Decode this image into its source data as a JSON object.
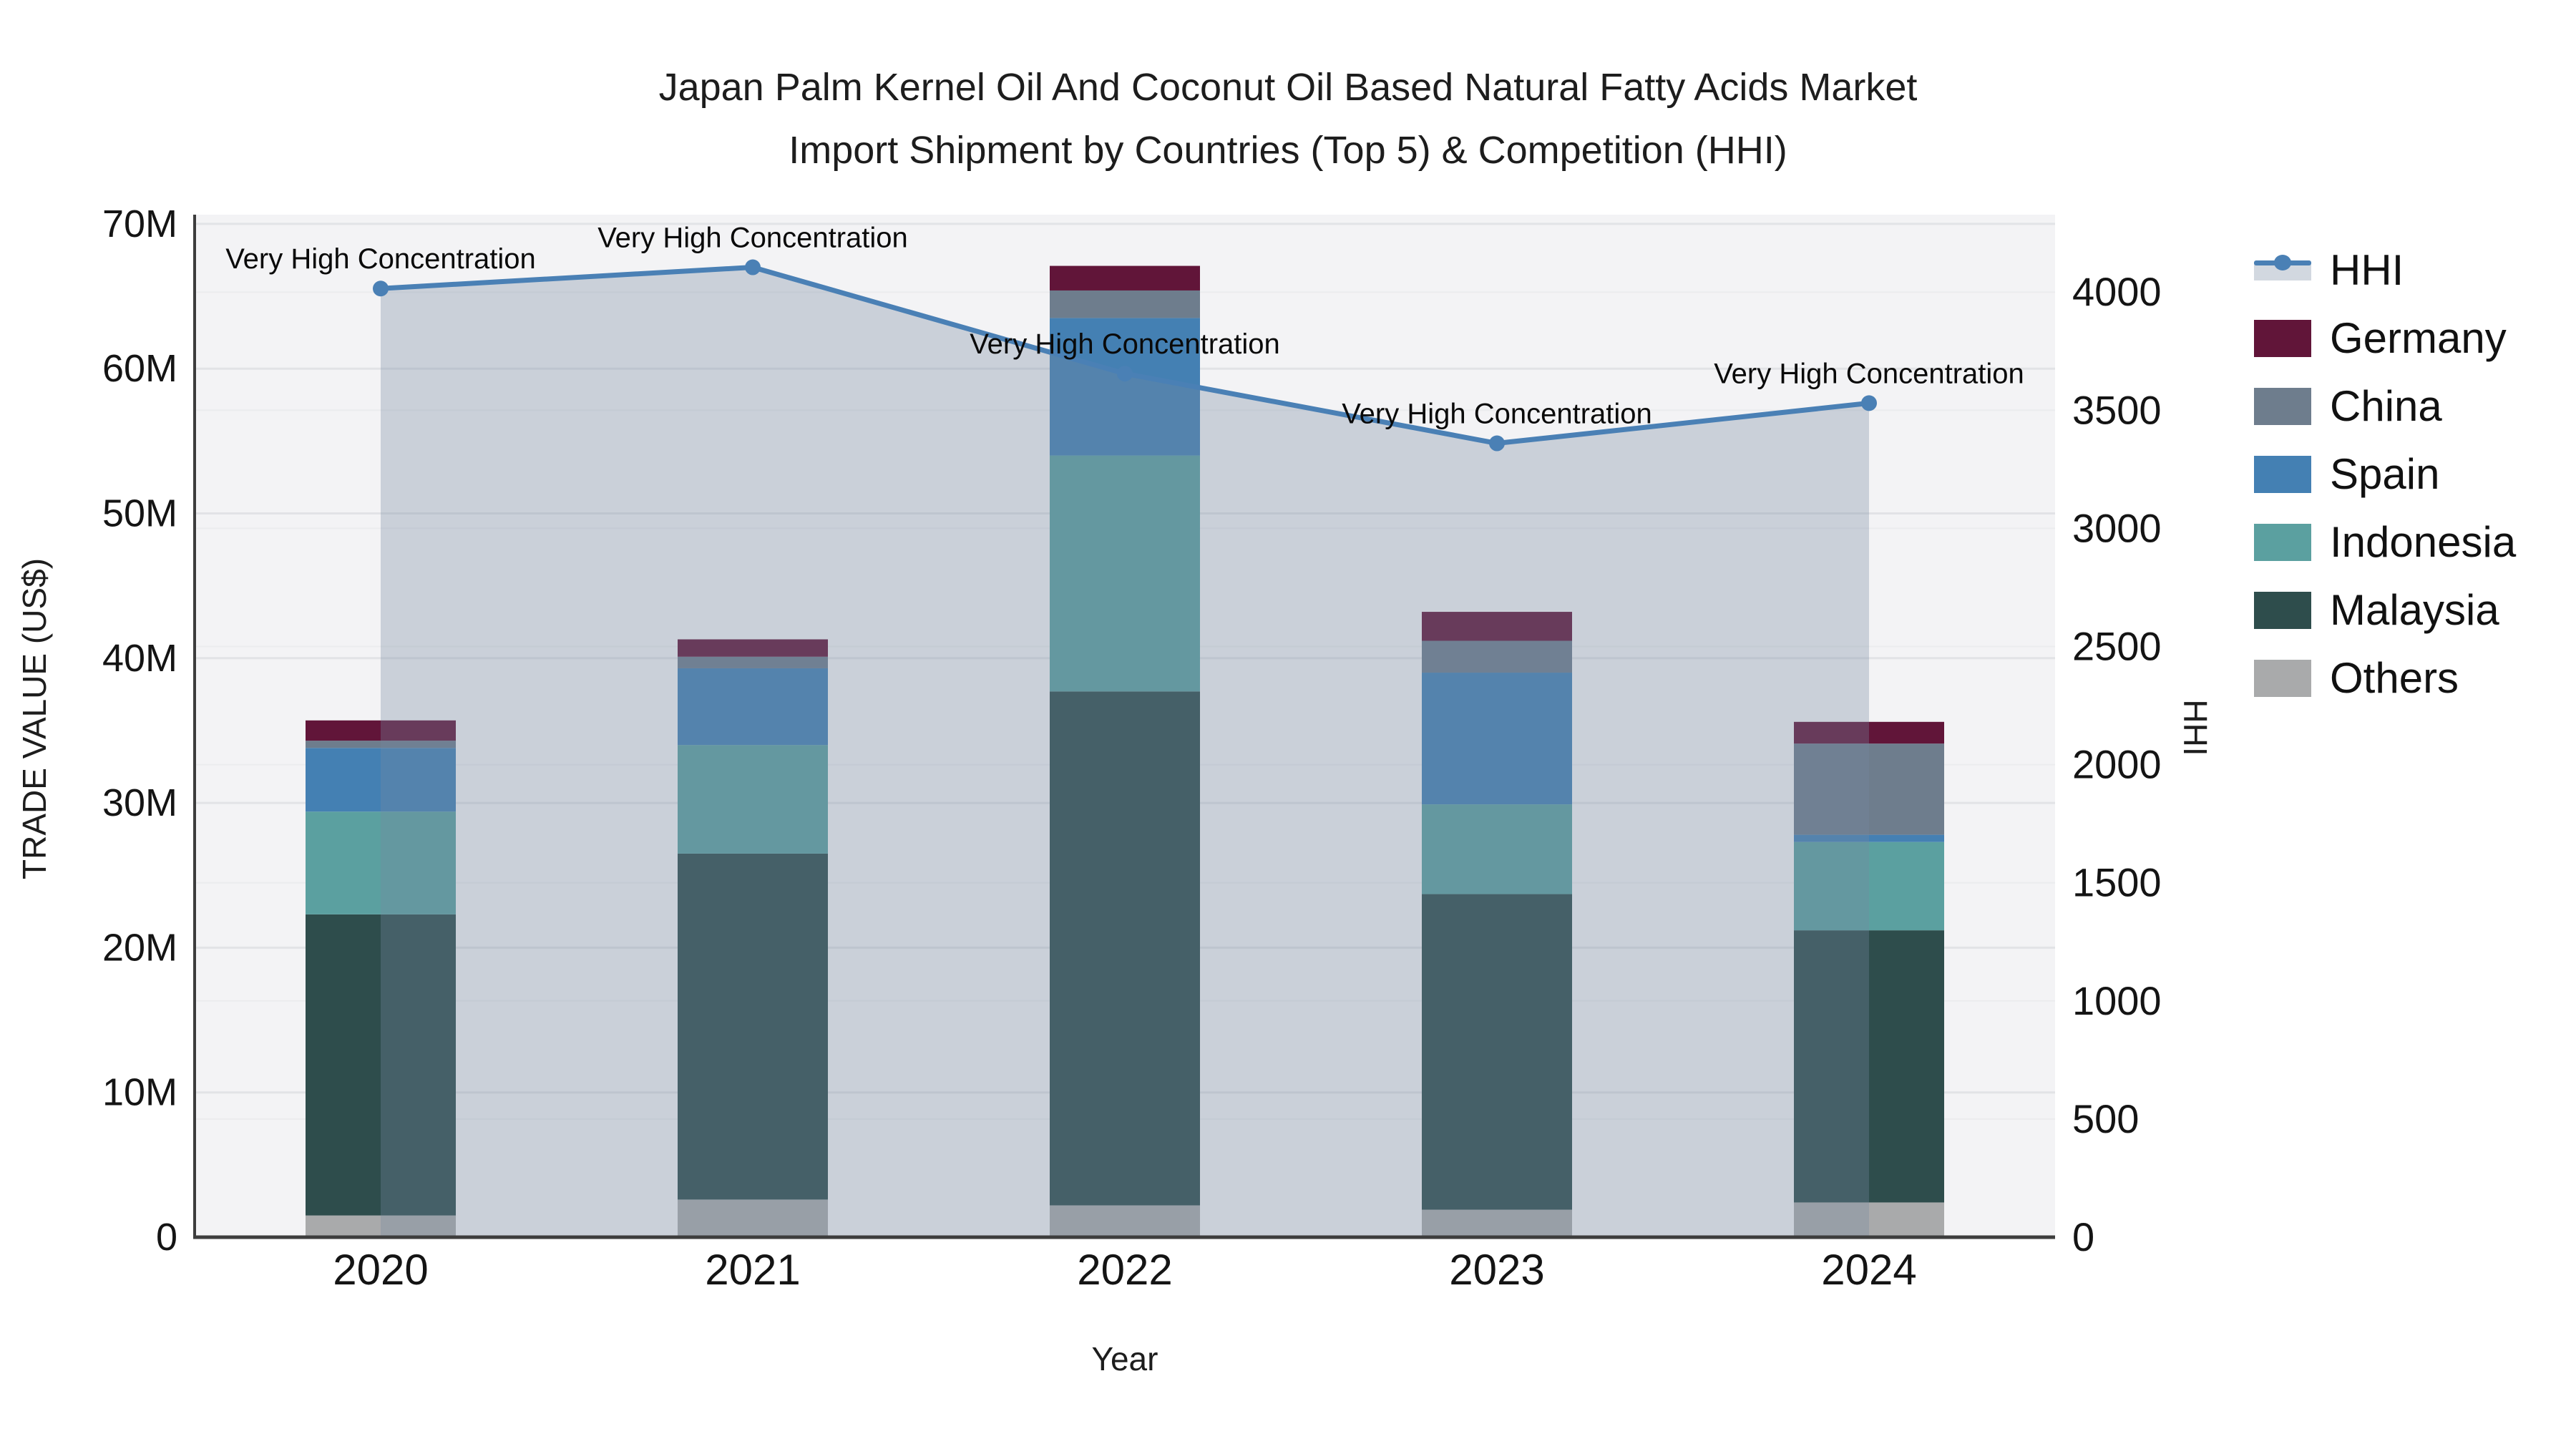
{
  "title": {
    "line1": "Japan Palm Kernel Oil And Coconut Oil Based Natural Fatty Acids Market",
    "line2": "Import Shipment by Countries (Top 5) & Competition (HHI)"
  },
  "axes": {
    "y_left_title": "TRADE VALUE (US$)",
    "y_right_title": "HHI",
    "x_title": "Year"
  },
  "legend": {
    "items": [
      {
        "label": "HHI",
        "type": "line",
        "color": "#4a80b5"
      },
      {
        "label": "Germany",
        "type": "swatch",
        "color": "#611539"
      },
      {
        "label": "China",
        "type": "swatch",
        "color": "#6e7d8d"
      },
      {
        "label": "Spain",
        "type": "swatch",
        "color": "#4480b3"
      },
      {
        "label": "Indonesia",
        "type": "swatch",
        "color": "#5ba0a0"
      },
      {
        "label": "Malaysia",
        "type": "swatch",
        "color": "#2e4d4c"
      },
      {
        "label": "Others",
        "type": "swatch",
        "color": "#a9aaab"
      }
    ]
  },
  "colors": {
    "plot_bg": "#f3f3f5",
    "grid_major": "#e2e3e6",
    "grid_minor": "#ebecee",
    "axis_line": "#3d3d3d",
    "tick_text": "#141414",
    "annotation_text": "#0a0a0a",
    "hhi_line": "#4a80b5",
    "hhi_area": "rgba(119,136,160,0.33)"
  },
  "chart_data": {
    "type": "combo",
    "bar_mode": "stacked",
    "categories": [
      "2020",
      "2021",
      "2022",
      "2023",
      "2024"
    ],
    "bar_unit": "million US$",
    "series": [
      {
        "name": "Others",
        "color": "#a9aaab",
        "values": [
          1.5,
          2.6,
          2.2,
          1.9,
          2.4
        ]
      },
      {
        "name": "Malaysia",
        "color": "#2e4d4c",
        "values": [
          20.8,
          23.9,
          35.5,
          21.8,
          18.8
        ]
      },
      {
        "name": "Indonesia",
        "color": "#5ba0a0",
        "values": [
          7.1,
          7.5,
          16.3,
          6.2,
          6.1
        ]
      },
      {
        "name": "Spain",
        "color": "#4480b3",
        "values": [
          4.4,
          5.3,
          9.5,
          9.1,
          0.5
        ]
      },
      {
        "name": "China",
        "color": "#6e7d8d",
        "values": [
          0.5,
          0.8,
          1.9,
          2.2,
          6.3
        ]
      },
      {
        "name": "Germany",
        "color": "#611539",
        "values": [
          1.4,
          1.2,
          1.7,
          2.0,
          1.5
        ]
      }
    ],
    "line": {
      "name": "HHI",
      "color": "#4a80b5",
      "values": [
        4015,
        4105,
        3655,
        3360,
        3530
      ],
      "area_fill": "rgba(119,136,160,0.33)",
      "annotations": [
        "Very High Concentration",
        "Very High Concentration",
        "Very High Concentration",
        "Very High Concentration",
        "Very High Concentration"
      ]
    },
    "y_left": {
      "label": "TRADE VALUE (US$)",
      "lim_m": [
        0,
        70.6
      ],
      "tick_values_m": [
        0,
        10,
        20,
        30,
        40,
        50,
        60,
        70
      ],
      "tick_labels": [
        "0",
        "10M",
        "20M",
        "30M",
        "40M",
        "50M",
        "60M",
        "70M"
      ]
    },
    "y_right": {
      "label": "HHI",
      "lim": [
        0,
        4327
      ],
      "tick_values": [
        0,
        500,
        1000,
        1500,
        2000,
        2500,
        3000,
        3500,
        4000
      ],
      "tick_labels": [
        "0",
        "500",
        "1000",
        "1500",
        "2000",
        "2500",
        "3000",
        "3500",
        "4000"
      ]
    },
    "x_label": "Year",
    "grid": true,
    "legend_position": "right"
  }
}
